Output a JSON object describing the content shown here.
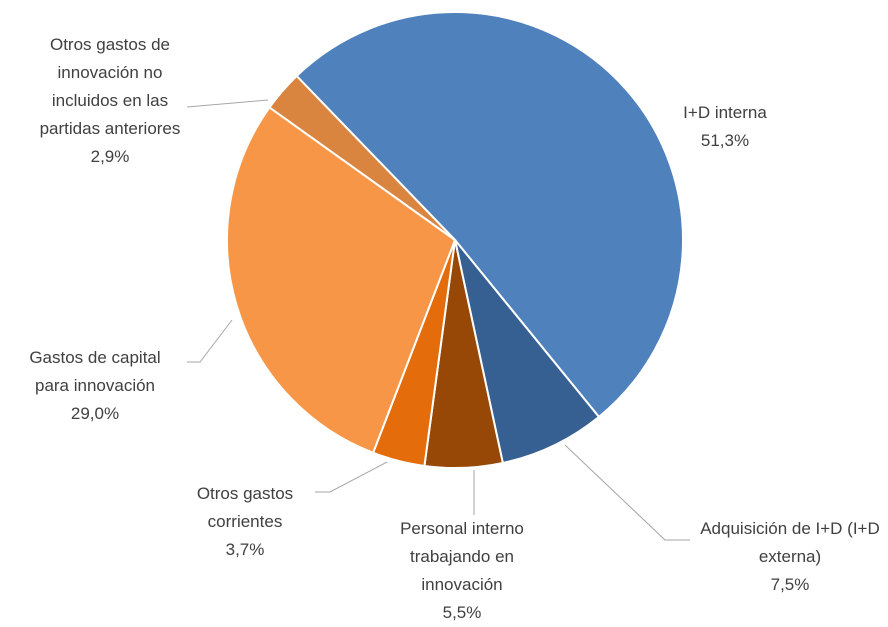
{
  "chart_data": {
    "type": "pie",
    "categories": [
      "I+D interna",
      "Adquisición de I+D (I+D externa)",
      "Personal interno trabajando en innovación",
      "Otros gastos corrientes",
      "Gastos de capital para innovación",
      "Otros gastos de innovación no incluidos en las partidas anteriores"
    ],
    "values": [
      51.3,
      7.5,
      5.5,
      3.7,
      29.0,
      2.9
    ],
    "value_labels": [
      "51,3%",
      "7,5%",
      "5,5%",
      "3,7%",
      "29,0%",
      "2,9%"
    ],
    "colors": [
      "#4f81bd",
      "#376092",
      "#974806",
      "#e46c0a",
      "#f79646",
      "#d9843f"
    ]
  }
}
